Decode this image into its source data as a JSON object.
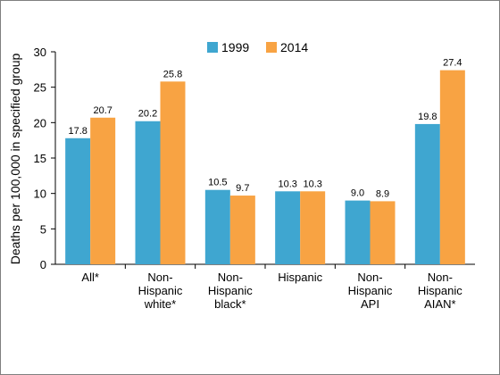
{
  "chart_data": {
    "type": "bar",
    "ylabel": "Deaths per 100,000 in specified group",
    "xlabel": "",
    "ylim": [
      0,
      30
    ],
    "yticks": [
      0,
      5,
      10,
      15,
      20,
      25,
      30
    ],
    "grid": false,
    "legend_position": "top-center",
    "categories": [
      [
        "All*"
      ],
      [
        "Non-",
        "Hispanic",
        "white*"
      ],
      [
        "Non-",
        "Hispanic",
        "black*"
      ],
      [
        "Hispanic"
      ],
      [
        "Non-",
        "Hispanic",
        "API"
      ],
      [
        "Non-",
        "Hispanic",
        "AIAN*"
      ]
    ],
    "series": [
      {
        "name": "1999",
        "color": "#3fa6d0",
        "values": [
          17.8,
          20.2,
          10.5,
          10.3,
          9.0,
          19.8
        ]
      },
      {
        "name": "2014",
        "color": "#f8a343",
        "values": [
          20.7,
          25.8,
          9.7,
          10.3,
          8.9,
          27.4
        ]
      }
    ],
    "data_labels": [
      [
        "17.8",
        "20.2",
        "10.5",
        "10.3",
        "9.0",
        "19.8"
      ],
      [
        "20.7",
        "25.8",
        "9.7",
        "10.3",
        "8.9",
        "27.4"
      ]
    ]
  }
}
